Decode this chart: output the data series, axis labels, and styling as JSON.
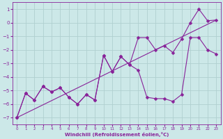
{
  "xlabel": "Windchill (Refroidissement éolien,°C)",
  "bg_color": "#cce8e8",
  "grid_color": "#b0d0d0",
  "line_color": "#882299",
  "xlim": [
    -0.5,
    23.5
  ],
  "ylim": [
    -7.5,
    1.5
  ],
  "xticks": [
    0,
    1,
    2,
    3,
    4,
    5,
    6,
    7,
    8,
    9,
    10,
    11,
    12,
    13,
    14,
    15,
    16,
    17,
    18,
    19,
    20,
    21,
    22,
    23
  ],
  "yticks": [
    -7,
    -6,
    -5,
    -4,
    -3,
    -2,
    -1,
    0,
    1
  ],
  "main_x": [
    0,
    1,
    2,
    3,
    4,
    5,
    6,
    7,
    8,
    9,
    10,
    11,
    12,
    13,
    14,
    15,
    16,
    17,
    18,
    19,
    20,
    21,
    22,
    23
  ],
  "main_y": [
    -7.0,
    -5.2,
    -5.7,
    -4.7,
    -5.1,
    -4.8,
    -5.5,
    -6.0,
    -5.3,
    -5.7,
    -2.4,
    -3.6,
    -2.5,
    -3.1,
    -3.5,
    -5.5,
    -5.6,
    -5.6,
    -5.8,
    -5.3,
    -1.1,
    -1.1,
    -2.0,
    -2.3
  ],
  "line2_x": [
    0,
    1,
    2,
    3,
    4,
    5,
    6,
    7,
    8,
    9,
    10,
    11,
    12,
    13,
    14,
    15,
    16,
    17,
    18,
    19,
    20,
    21,
    22,
    23
  ],
  "line2_y": [
    -7.0,
    -5.2,
    -5.7,
    -4.7,
    -5.1,
    -4.8,
    -5.5,
    -6.0,
    -5.3,
    -5.7,
    -2.4,
    -3.6,
    -2.5,
    -3.1,
    -1.1,
    -1.1,
    -2.0,
    -1.7,
    -2.2,
    -1.2,
    0.0,
    1.0,
    0.15,
    0.2
  ],
  "line3_x": [
    0,
    23
  ],
  "line3_y": [
    -7.0,
    0.2
  ]
}
